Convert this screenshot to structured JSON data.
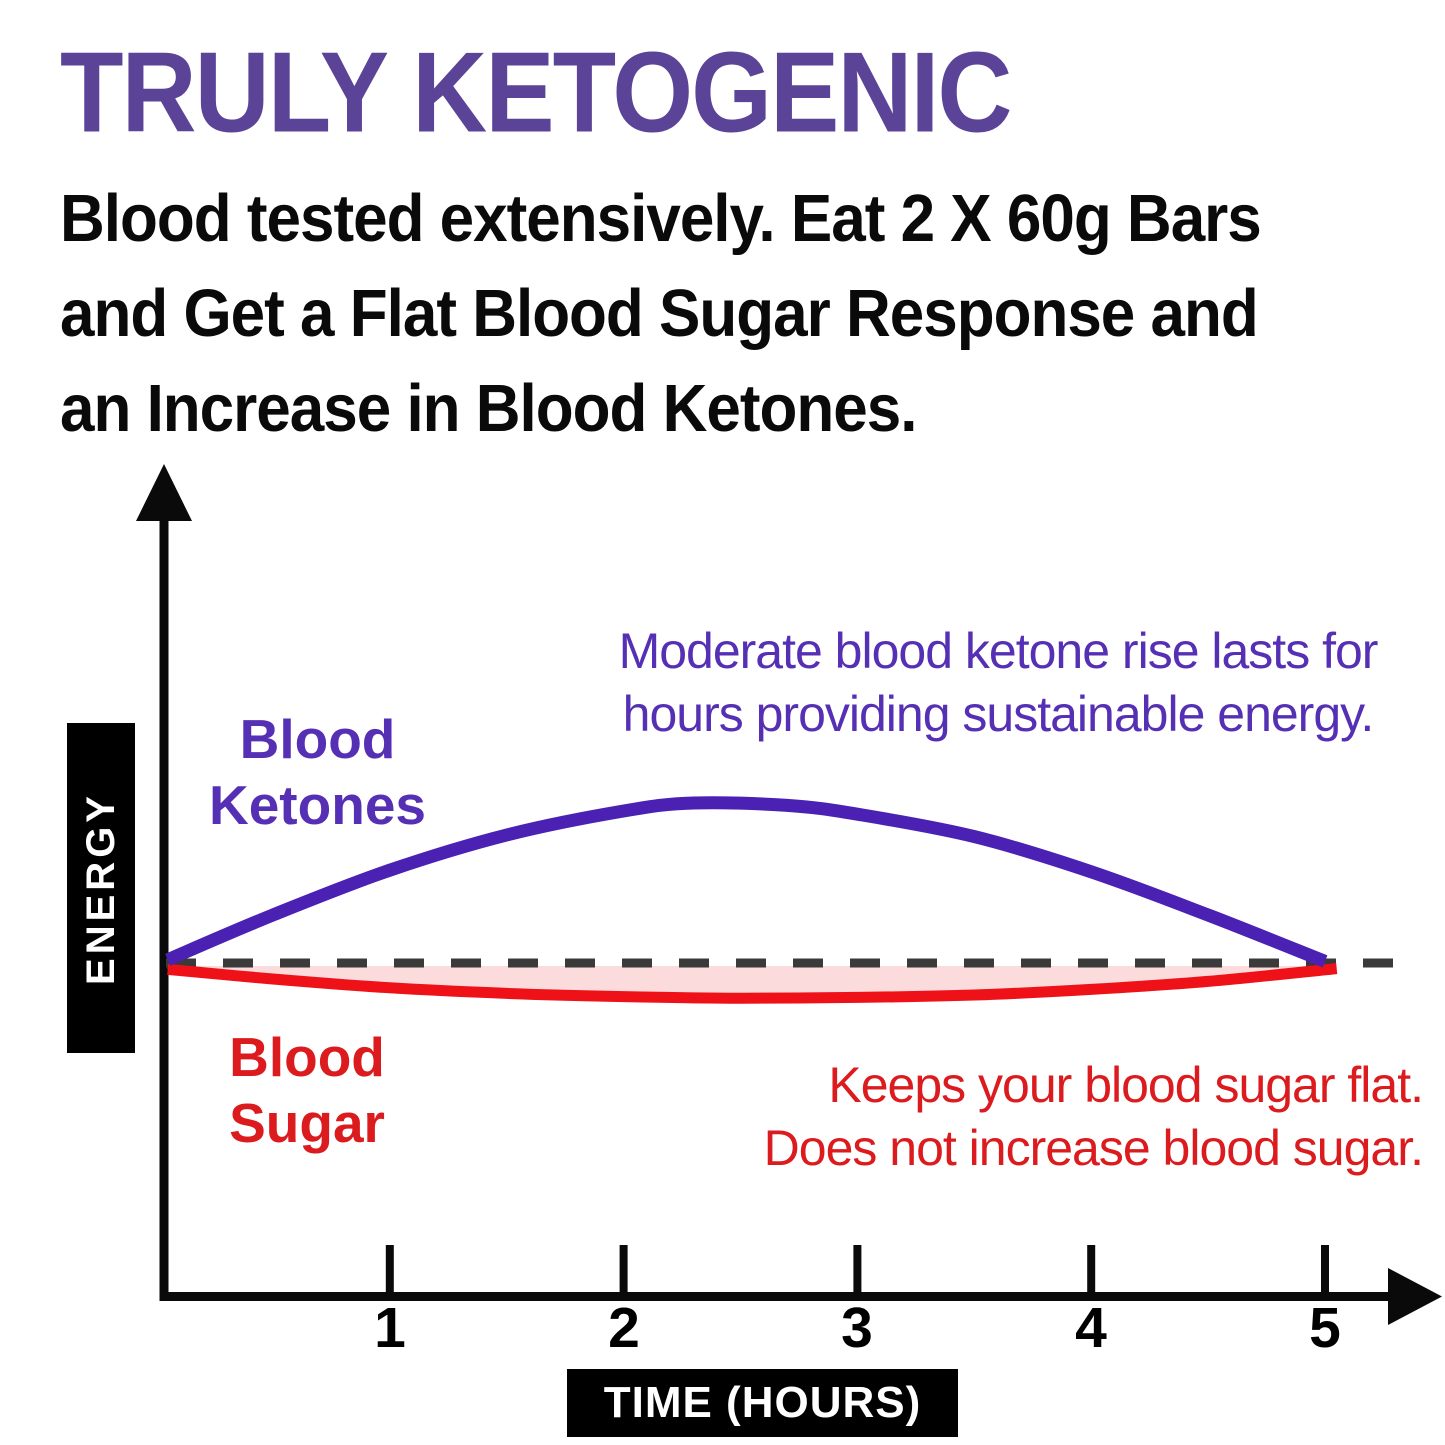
{
  "colors": {
    "title_purple": "#5B4397",
    "accent_purple": "#5630B4",
    "red_text": "#DC1B1E",
    "pink_fill": "#FBDBDB",
    "dash_gray": "#3A3A3A",
    "axis_black": "#0A0A0A"
  },
  "header": {
    "title": "TRULY KETOGENIC",
    "subtitle_lines": [
      "Blood tested extensively. Eat 2 X 60g Bars",
      "and Get a Flat Blood Sugar Response and",
      "an Increase in Blood Ketones."
    ]
  },
  "chart_data": {
    "type": "line",
    "title": "",
    "xlabel": "TIME (HOURS)",
    "ylabel": "ENERGY",
    "x_ticks": [
      1,
      2,
      3,
      4,
      5
    ],
    "x_range": [
      0,
      5.5
    ],
    "grid": false,
    "legend": "inline-labels",
    "baseline": {
      "value": 0,
      "style": "dashed",
      "meaning": "starting blood level"
    },
    "series": [
      {
        "name": "Blood Ketones",
        "color": "#4B21B4",
        "x": [
          0.05,
          0.5,
          1,
          1.5,
          2,
          2.3,
          2.7,
          3,
          3.5,
          4,
          4.5,
          5.0
        ],
        "y": [
          0.02,
          0.3,
          0.58,
          0.8,
          0.95,
          1.0,
          0.985,
          0.93,
          0.79,
          0.57,
          0.3,
          0.01
        ]
      },
      {
        "name": "Blood Sugar",
        "color": "#EE1118",
        "fill": "#FBDBDB",
        "x": [
          0.05,
          0.5,
          1,
          1.5,
          2,
          2.5,
          3,
          3.5,
          4,
          4.5,
          5.05
        ],
        "y": [
          -0.04,
          -0.1,
          -0.155,
          -0.19,
          -0.21,
          -0.22,
          -0.215,
          -0.2,
          -0.165,
          -0.115,
          -0.035
        ]
      }
    ]
  },
  "labels": {
    "ketones": {
      "lines": [
        "Blood",
        "Ketones"
      ]
    },
    "sugar": {
      "lines": [
        "Blood",
        "Sugar"
      ]
    }
  },
  "annotations": {
    "ketones": {
      "lines": [
        "Moderate blood ketone rise lasts for",
        "hours providing sustainable energy."
      ]
    },
    "sugar": {
      "lines": [
        "Keeps your blood sugar flat.",
        "Does not increase blood sugar."
      ]
    }
  }
}
